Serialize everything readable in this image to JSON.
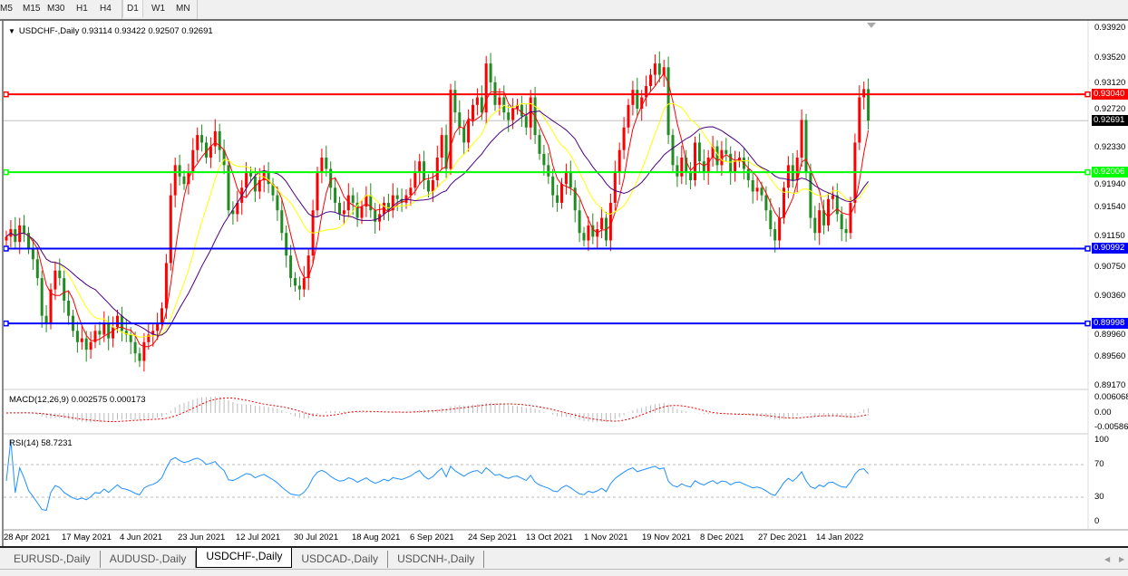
{
  "toolbar": {
    "timeframes": [
      "M5",
      "M15",
      "M30",
      "H1",
      "H4",
      "D1",
      "W1",
      "MN"
    ],
    "active": "D1"
  },
  "chart": {
    "symbol_title": "USDCHF-,Daily",
    "ohlc": "0.93114 0.93422 0.92507 0.92691",
    "bull_color": "#ff0000",
    "bear_color": "#228b22",
    "price_ticks": [
      "0.93920",
      "0.93520",
      "0.93120",
      "0.92720",
      "0.92330",
      "0.91940",
      "0.91540",
      "0.91150",
      "0.90750",
      "0.90360",
      "0.89960",
      "0.89560",
      "0.89170"
    ],
    "levels": [
      {
        "price": "0.93040",
        "color": "#ff0000"
      },
      {
        "price": "0.92006",
        "color": "#00ff00"
      },
      {
        "price": "0.90992",
        "color": "#0000ff"
      },
      {
        "price": "0.89998",
        "color": "#0000ff"
      }
    ],
    "current_price": "0.92691",
    "dates": [
      "28 Apr 2021",
      "17 May 2021",
      "4 Jun 2021",
      "23 Jun 2021",
      "12 Jul 2021",
      "30 Jul 2021",
      "18 Aug 2021",
      "6 Sep 2021",
      "24 Sep 2021",
      "13 Oct 2021",
      "1 Nov 2021",
      "19 Nov 2021",
      "8 Dec 2021",
      "27 Dec 2021",
      "14 Jan 2022"
    ]
  },
  "macd": {
    "label": "MACD(12,26,9) 0.002575 0.000173",
    "ticks": [
      "0.006068",
      "0.00",
      "-0.00586"
    ]
  },
  "rsi": {
    "label": "RSI(14) 58.7231",
    "ticks": [
      "100",
      "70",
      "30",
      "0"
    ],
    "line_color": "#1e90ff"
  },
  "tabs": [
    "EURUSD-,Daily",
    "AUDUSD-,Daily",
    "USDCHF-,Daily",
    "USDCAD-,Daily",
    "USDCNH-,Daily"
  ],
  "active_tab": "USDCHF-,Daily",
  "chart_data": {
    "type": "candlestick",
    "approximate_daily_closes": [
      0.9115,
      0.9125,
      0.9108,
      0.913,
      0.912,
      0.91,
      0.9085,
      0.906,
      0.901,
      0.9,
      0.9045,
      0.907,
      0.906,
      0.903,
      0.901,
      0.899,
      0.8975,
      0.898,
      0.8965,
      0.8975,
      0.899,
      0.8985,
      0.9,
      0.898,
      0.8995,
      0.901,
      0.899,
      0.8985,
      0.8975,
      0.896,
      0.895,
      0.8975,
      0.8985,
      0.899,
      0.9,
      0.902,
      0.908,
      0.917,
      0.921,
      0.9195,
      0.9185,
      0.92,
      0.923,
      0.925,
      0.924,
      0.922,
      0.9235,
      0.9255,
      0.923,
      0.921,
      0.915,
      0.9145,
      0.916,
      0.918,
      0.92,
      0.9195,
      0.9175,
      0.919,
      0.92,
      0.9185,
      0.917,
      0.915,
      0.912,
      0.909,
      0.906,
      0.905,
      0.9045,
      0.906,
      0.909,
      0.915,
      0.92,
      0.922,
      0.9205,
      0.918,
      0.916,
      0.9145,
      0.915,
      0.917,
      0.916,
      0.914,
      0.9155,
      0.917,
      0.915,
      0.9135,
      0.9145,
      0.916,
      0.915,
      0.917,
      0.9165,
      0.916,
      0.917,
      0.918,
      0.92,
      0.9215,
      0.919,
      0.9175,
      0.919,
      0.922,
      0.925,
      0.9205,
      0.931,
      0.928,
      0.926,
      0.924,
      0.927,
      0.929,
      0.93,
      0.928,
      0.9345,
      0.932,
      0.929,
      0.93,
      0.928,
      0.927,
      0.9285,
      0.929,
      0.9275,
      0.926,
      0.93,
      0.925,
      0.9225,
      0.921,
      0.9195,
      0.917,
      0.916,
      0.9185,
      0.92,
      0.918,
      0.915,
      0.912,
      0.911,
      0.913,
      0.9115,
      0.9125,
      0.914,
      0.911,
      0.916,
      0.92,
      0.923,
      0.926,
      0.929,
      0.931,
      0.9285,
      0.93,
      0.9315,
      0.933,
      0.9345,
      0.933,
      0.934,
      0.925,
      0.921,
      0.9195,
      0.922,
      0.92,
      0.919,
      0.924,
      0.9215,
      0.92,
      0.922,
      0.9235,
      0.921,
      0.923,
      0.9225,
      0.92,
      0.9215,
      0.922,
      0.9205,
      0.919,
      0.9175,
      0.918,
      0.917,
      0.915,
      0.9125,
      0.911,
      0.914,
      0.918,
      0.921,
      0.919,
      0.922,
      0.927,
      0.92,
      0.914,
      0.912,
      0.915,
      0.913,
      0.9165,
      0.917,
      0.9145,
      0.9125,
      0.912,
      0.916,
      0.924,
      0.93,
      0.9311,
      0.92691
    ],
    "y_range": [
      0.8917,
      0.9392
    ],
    "macd_range": [
      -0.00586,
      0.006068
    ],
    "rsi_range": [
      0,
      100
    ],
    "rsi_levels": [
      30,
      70
    ]
  }
}
